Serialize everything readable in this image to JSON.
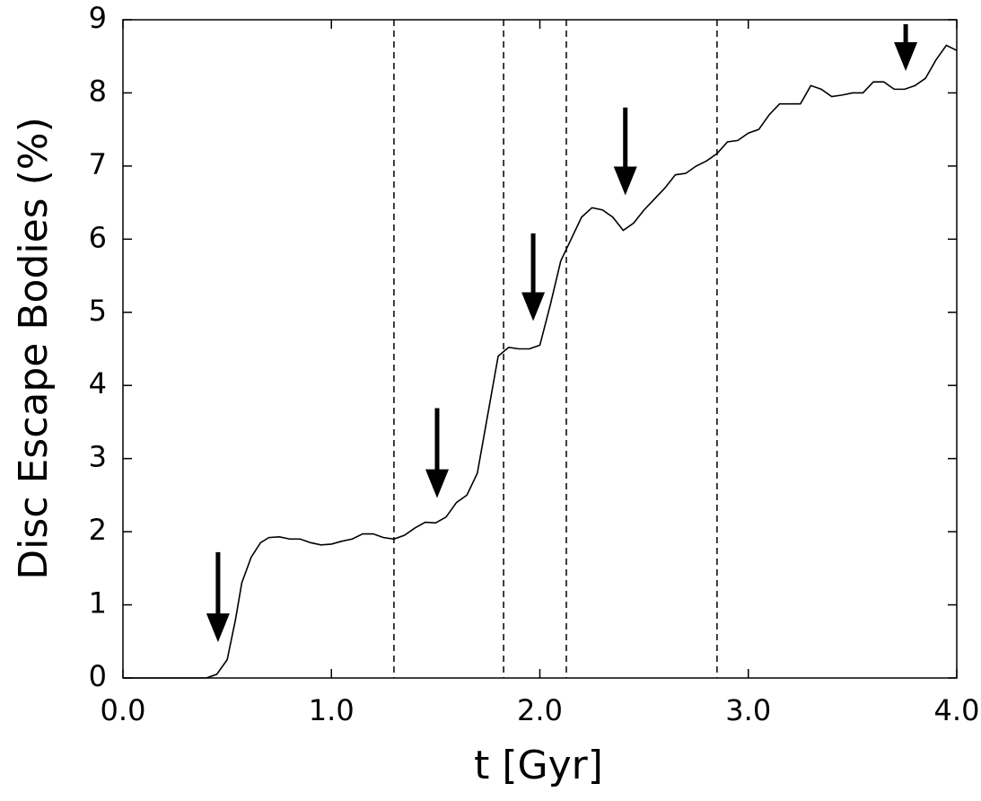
{
  "chart_data": {
    "type": "line",
    "xlabel": "t [Gyr]",
    "ylabel": "Disc Escape Bodies (%)",
    "xlim": [
      0,
      4
    ],
    "ylim": [
      0,
      9
    ],
    "xticks": [
      {
        "value": 0,
        "label": "0.0"
      },
      {
        "value": 1,
        "label": "1.0"
      },
      {
        "value": 2,
        "label": "2.0"
      },
      {
        "value": 3,
        "label": "3.0"
      },
      {
        "value": 4,
        "label": "4.0"
      }
    ],
    "yticks": [
      0,
      1,
      2,
      3,
      4,
      5,
      6,
      7,
      8,
      9
    ],
    "x": [
      0,
      0.1,
      0.2,
      0.3,
      0.4,
      0.45,
      0.5,
      0.54,
      0.57,
      0.615,
      0.66,
      0.7,
      0.75,
      0.8,
      0.85,
      0.9,
      0.95,
      1.0,
      1.05,
      1.1,
      1.15,
      1.2,
      1.25,
      1.3,
      1.35,
      1.4,
      1.45,
      1.5,
      1.55,
      1.6,
      1.65,
      1.7,
      1.75,
      1.8,
      1.85,
      1.9,
      1.95,
      2.0,
      2.05,
      2.1,
      2.15,
      2.2,
      2.25,
      2.3,
      2.35,
      2.4,
      2.45,
      2.5,
      2.55,
      2.6,
      2.65,
      2.7,
      2.75,
      2.8,
      2.85,
      2.9,
      2.95,
      3.0,
      3.05,
      3.1,
      3.15,
      3.2,
      3.25,
      3.3,
      3.35,
      3.4,
      3.45,
      3.5,
      3.55,
      3.6,
      3.65,
      3.7,
      3.75,
      3.8,
      3.85,
      3.9,
      3.95,
      4.0
    ],
    "series": [
      {
        "color": "#000000",
        "values": [
          0,
          0,
          0,
          0,
          0,
          0.05,
          0.25,
          0.8,
          1.3,
          1.65,
          1.85,
          1.92,
          1.93,
          1.9,
          1.9,
          1.85,
          1.82,
          1.83,
          1.87,
          1.9,
          1.97,
          1.97,
          1.92,
          1.9,
          1.95,
          2.05,
          2.13,
          2.12,
          2.2,
          2.4,
          2.5,
          2.8,
          3.6,
          4.4,
          4.52,
          4.5,
          4.5,
          4.55,
          5.1,
          5.7,
          6.0,
          6.3,
          6.43,
          6.4,
          6.3,
          6.12,
          6.22,
          6.4,
          6.55,
          6.7,
          6.88,
          6.9,
          7.0,
          7.07,
          7.17,
          7.33,
          7.35,
          7.45,
          7.5,
          7.7,
          7.85,
          7.85,
          7.85,
          8.1,
          8.05,
          7.95,
          7.97,
          8.0,
          8.0,
          8.15,
          8.15,
          8.05,
          8.05,
          8.1,
          8.2,
          8.45,
          8.65,
          8.58
        ]
      }
    ],
    "vlines": [
      1.3,
      1.826,
      2.127,
      2.85
    ],
    "arrows": [
      {
        "x": 0.456,
        "y_start": 1.72,
        "y_end": 0.49
      },
      {
        "x": 1.507,
        "y_start": 3.69,
        "y_end": 2.46
      },
      {
        "x": 1.968,
        "y_start": 6.08,
        "y_end": 4.88
      },
      {
        "x": 2.41,
        "y_start": 7.8,
        "y_end": 6.6
      },
      {
        "x": 3.755,
        "y_start": 8.94,
        "y_end": 8.3
      }
    ]
  }
}
